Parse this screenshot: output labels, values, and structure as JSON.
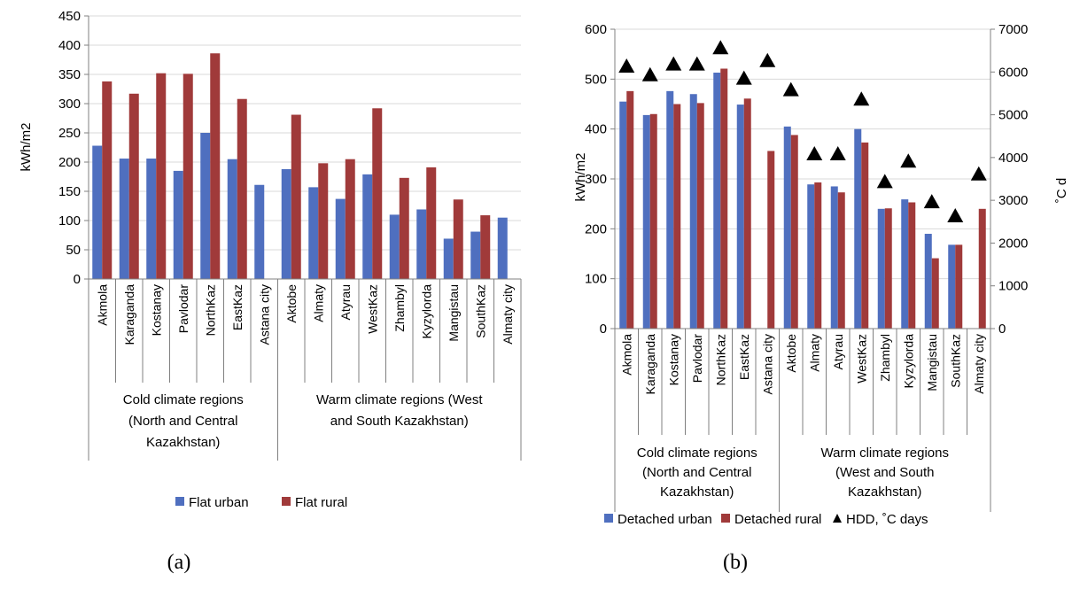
{
  "colors": {
    "urban": "#4f6fbf",
    "rural": "#a03a3a",
    "hdd": "#000000",
    "axis": "#808080",
    "grid": "#d9d9d9"
  },
  "panels": [
    {
      "caption": "(a)"
    },
    {
      "caption": "(b)"
    }
  ],
  "chart_data": [
    {
      "type": "bar",
      "categories": [
        "Akmola",
        "Karaganda",
        "Kostanay",
        "Pavlodar",
        "NorthKaz",
        "EastKaz",
        "Astana city",
        "Aktobe",
        "Almaty",
        "Atyrau",
        "WestKaz",
        "Zhambyl",
        "Kyzylorda",
        "Mangistau",
        "SouthKaz",
        "Almaty city"
      ],
      "groups": [
        {
          "lines": [
            "Cold climate regions",
            "(North and Central",
            "Kazakhstan)"
          ],
          "count": 7
        },
        {
          "lines": [
            "Warm climate regions (West",
            "and South Kazakhstan)"
          ],
          "count": 9
        }
      ],
      "series": [
        {
          "name": "Flat urban",
          "values": [
            228,
            206,
            206,
            185,
            250,
            205,
            161,
            188,
            157,
            137,
            179,
            110,
            119,
            69,
            81,
            105
          ]
        },
        {
          "name": "Flat rural",
          "values": [
            338,
            317,
            352,
            351,
            386,
            308,
            null,
            281,
            198,
            205,
            292,
            173,
            191,
            136,
            109,
            null
          ]
        }
      ],
      "ylabel": "kWh/m2",
      "ylim": [
        0,
        450
      ],
      "yticks": [
        0,
        50,
        100,
        150,
        200,
        250,
        300,
        350,
        400,
        450
      ],
      "grid": true,
      "legend": "bottom"
    },
    {
      "type": "bar",
      "categories": [
        "Akmola",
        "Karaganda",
        "Kostanay",
        "Pavlodar",
        "NorthKaz",
        "EastKaz",
        "Astana city",
        "Aktobe",
        "Almaty",
        "Atyrau",
        "WestKaz",
        "Zhambyl",
        "Kyzylorda",
        "Mangistau",
        "SouthKaz",
        "Almaty city"
      ],
      "groups": [
        {
          "lines": [
            "Cold climate regions",
            "(North and Central",
            "Kazakhstan)"
          ],
          "count": 7
        },
        {
          "lines": [
            "Warm climate regions",
            "(West and South",
            "Kazakhstan)"
          ],
          "count": 9
        }
      ],
      "series": [
        {
          "name": "Detached urban",
          "values": [
            455,
            428,
            476,
            470,
            513,
            449,
            null,
            405,
            289,
            285,
            400,
            240,
            259,
            190,
            168,
            null
          ]
        },
        {
          "name": "Detached rural",
          "values": [
            476,
            430,
            450,
            452,
            521,
            461,
            356,
            388,
            293,
            273,
            373,
            241,
            253,
            141,
            168,
            240
          ]
        },
        {
          "name": "HDD, ˚C days",
          "type": "scatter",
          "axis": "right",
          "values": [
            6150,
            5950,
            6200,
            6200,
            6580,
            5870,
            6280,
            5600,
            4100,
            4100,
            5380,
            3450,
            3930,
            2980,
            2650,
            3630
          ]
        }
      ],
      "ylabel": "kWh/m2",
      "ylim": [
        0,
        600
      ],
      "yticks": [
        0,
        100,
        200,
        300,
        400,
        500,
        600
      ],
      "y2label": "˚C d",
      "y2lim": [
        0,
        7000
      ],
      "y2ticks": [
        0,
        1000,
        2000,
        3000,
        4000,
        5000,
        6000,
        7000
      ],
      "grid": true,
      "legend": "bottom"
    }
  ]
}
